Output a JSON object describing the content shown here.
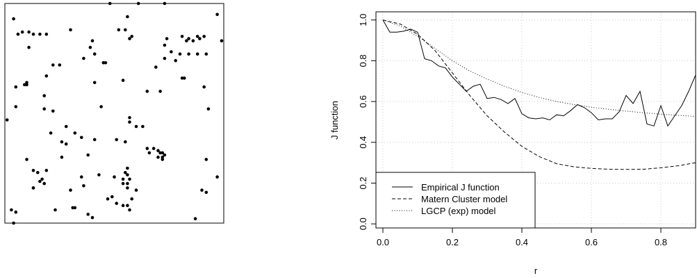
{
  "chart_data": [
    {
      "type": "scatter",
      "title": "",
      "xlabel": "",
      "ylabel": "",
      "xlim": [
        0,
        1
      ],
      "ylim": [
        0,
        1
      ],
      "axes_visible": false,
      "points": [
        [
          0.48,
          1.0
        ],
        [
          0.61,
          1.0
        ],
        [
          0.73,
          1.0
        ],
        [
          0.04,
          0.93
        ],
        [
          0.97,
          0.95
        ],
        [
          0.56,
          0.94
        ],
        [
          0.08,
          0.87
        ],
        [
          0.11,
          0.87
        ],
        [
          0.13,
          0.86
        ],
        [
          0.16,
          0.86
        ],
        [
          0.19,
          0.86
        ],
        [
          0.06,
          0.86
        ],
        [
          0.3,
          0.88
        ],
        [
          0.52,
          0.88
        ],
        [
          0.55,
          0.88
        ],
        [
          0.58,
          0.85
        ],
        [
          0.57,
          0.84
        ],
        [
          0.99,
          0.83
        ],
        [
          0.4,
          0.83
        ],
        [
          0.74,
          0.84
        ],
        [
          0.81,
          0.85
        ],
        [
          0.84,
          0.84
        ],
        [
          0.88,
          0.85
        ],
        [
          0.91,
          0.85
        ],
        [
          0.83,
          0.83
        ],
        [
          0.86,
          0.83
        ],
        [
          0.89,
          0.84
        ],
        [
          0.11,
          0.8
        ],
        [
          0.39,
          0.8
        ],
        [
          0.73,
          0.81
        ],
        [
          0.36,
          0.75
        ],
        [
          0.41,
          0.77
        ],
        [
          0.76,
          0.78
        ],
        [
          0.8,
          0.77
        ],
        [
          0.84,
          0.77
        ],
        [
          0.88,
          0.77
        ],
        [
          0.92,
          0.77
        ],
        [
          0.73,
          0.75
        ],
        [
          0.78,
          0.74
        ],
        [
          0.45,
          0.73
        ],
        [
          0.46,
          0.73
        ],
        [
          0.22,
          0.72
        ],
        [
          0.25,
          0.72
        ],
        [
          0.69,
          0.71
        ],
        [
          0.19,
          0.67
        ],
        [
          0.54,
          0.65
        ],
        [
          0.81,
          0.66
        ],
        [
          0.82,
          0.66
        ],
        [
          0.1,
          0.64
        ],
        [
          0.09,
          0.63
        ],
        [
          0.1,
          0.63
        ],
        [
          0.05,
          0.62
        ],
        [
          0.41,
          0.64
        ],
        [
          0.91,
          0.62
        ],
        [
          0.65,
          0.6
        ],
        [
          0.71,
          0.6
        ],
        [
          0.18,
          0.58
        ],
        [
          0.05,
          0.53
        ],
        [
          0.18,
          0.52
        ],
        [
          0.22,
          0.51
        ],
        [
          0.44,
          0.53
        ],
        [
          0.93,
          0.52
        ],
        [
          0.57,
          0.48
        ],
        [
          0.57,
          0.46
        ],
        [
          0.6,
          0.44
        ],
        [
          0.63,
          0.44
        ],
        [
          0.01,
          0.47
        ],
        [
          0.28,
          0.44
        ],
        [
          0.32,
          0.41
        ],
        [
          0.21,
          0.41
        ],
        [
          0.35,
          0.39
        ],
        [
          0.26,
          0.37
        ],
        [
          0.28,
          0.36
        ],
        [
          0.41,
          0.38
        ],
        [
          0.51,
          0.38
        ],
        [
          0.55,
          0.37
        ],
        [
          0.65,
          0.34
        ],
        [
          0.68,
          0.34
        ],
        [
          0.7,
          0.33
        ],
        [
          0.71,
          0.32
        ],
        [
          0.72,
          0.32
        ],
        [
          0.73,
          0.31
        ],
        [
          0.7,
          0.3
        ],
        [
          0.72,
          0.29
        ],
        [
          0.38,
          0.31
        ],
        [
          0.26,
          0.3
        ],
        [
          0.66,
          0.32
        ],
        [
          0.72,
          0.3
        ],
        [
          0.92,
          0.29
        ],
        [
          0.1,
          0.29
        ],
        [
          0.13,
          0.24
        ],
        [
          0.15,
          0.23
        ],
        [
          0.19,
          0.24
        ],
        [
          0.56,
          0.25
        ],
        [
          0.55,
          0.23
        ],
        [
          0.56,
          0.22
        ],
        [
          0.17,
          0.2
        ],
        [
          0.16,
          0.19
        ],
        [
          0.18,
          0.18
        ],
        [
          0.54,
          0.2
        ],
        [
          0.57,
          0.2
        ],
        [
          0.35,
          0.21
        ],
        [
          0.5,
          0.21
        ],
        [
          0.54,
          0.18
        ],
        [
          0.56,
          0.18
        ],
        [
          0.43,
          0.22
        ],
        [
          0.97,
          0.21
        ],
        [
          0.13,
          0.16
        ],
        [
          0.13,
          0.16
        ],
        [
          0.36,
          0.17
        ],
        [
          0.56,
          0.16
        ],
        [
          0.3,
          0.15
        ],
        [
          0.6,
          0.15
        ],
        [
          0.9,
          0.15
        ],
        [
          0.92,
          0.14
        ],
        [
          0.47,
          0.11
        ],
        [
          0.49,
          0.12
        ],
        [
          0.58,
          0.11
        ],
        [
          0.54,
          0.08
        ],
        [
          0.56,
          0.08
        ],
        [
          0.51,
          0.09
        ],
        [
          0.31,
          0.07
        ],
        [
          0.32,
          0.07
        ],
        [
          0.38,
          0.04
        ],
        [
          0.23,
          0.06
        ],
        [
          0.57,
          0.06
        ],
        [
          0.03,
          0.06
        ],
        [
          0.05,
          0.05
        ],
        [
          0.87,
          0.02
        ],
        [
          0.04,
          0.0
        ],
        [
          0.4,
          0.025
        ]
      ]
    },
    {
      "type": "line",
      "title": "",
      "xlabel": "r",
      "ylabel": "J function",
      "xlim": [
        -0.02,
        0.9
      ],
      "ylim": [
        -0.02,
        1.04
      ],
      "xticks": [
        "0.0",
        "0.2",
        "0.4",
        "0.6",
        "0.8"
      ],
      "yticks": [
        "0.0",
        "0.2",
        "0.4",
        "0.6",
        "0.8",
        "1.0"
      ],
      "grid": true,
      "legend_position": "bottom-left",
      "series": [
        {
          "name": "Empirical J function",
          "line_style": "solid",
          "x": [
            0,
            0.02,
            0.04,
            0.06,
            0.08,
            0.1,
            0.12,
            0.14,
            0.16,
            0.18,
            0.2,
            0.22,
            0.24,
            0.26,
            0.28,
            0.3,
            0.32,
            0.34,
            0.36,
            0.38,
            0.4,
            0.42,
            0.44,
            0.46,
            0.48,
            0.5,
            0.52,
            0.54,
            0.56,
            0.58,
            0.6,
            0.62,
            0.64,
            0.66,
            0.68,
            0.7,
            0.72,
            0.74,
            0.76,
            0.78,
            0.8,
            0.82,
            0.84,
            0.86,
            0.88,
            0.9
          ],
          "y": [
            1.0,
            0.94,
            0.94,
            0.945,
            0.955,
            0.94,
            0.81,
            0.8,
            0.775,
            0.765,
            0.72,
            0.685,
            0.65,
            0.675,
            0.685,
            0.615,
            0.62,
            0.61,
            0.59,
            0.615,
            0.54,
            0.52,
            0.515,
            0.52,
            0.51,
            0.535,
            0.53,
            0.555,
            0.585,
            0.57,
            0.545,
            0.51,
            0.515,
            0.515,
            0.55,
            0.63,
            0.59,
            0.65,
            0.49,
            0.48,
            0.58,
            0.48,
            0.53,
            0.58,
            0.65,
            0.73
          ]
        },
        {
          "name": "Matern Cluster model",
          "line_style": "dashed",
          "x": [
            0,
            0.05,
            0.1,
            0.15,
            0.2,
            0.25,
            0.3,
            0.35,
            0.4,
            0.45,
            0.5,
            0.55,
            0.6,
            0.65,
            0.7,
            0.75,
            0.8,
            0.85,
            0.9
          ],
          "y": [
            1.0,
            0.98,
            0.93,
            0.85,
            0.74,
            0.63,
            0.53,
            0.45,
            0.38,
            0.33,
            0.295,
            0.28,
            0.272,
            0.268,
            0.267,
            0.268,
            0.275,
            0.285,
            0.3
          ]
        },
        {
          "name": "LGCP (exp) model",
          "line_style": "dotted",
          "x": [
            0,
            0.05,
            0.1,
            0.15,
            0.2,
            0.25,
            0.3,
            0.35,
            0.4,
            0.45,
            0.5,
            0.55,
            0.6,
            0.65,
            0.7,
            0.75,
            0.8,
            0.85,
            0.9
          ],
          "y": [
            1.0,
            0.97,
            0.92,
            0.86,
            0.8,
            0.75,
            0.71,
            0.675,
            0.645,
            0.62,
            0.6,
            0.585,
            0.572,
            0.562,
            0.553,
            0.545,
            0.538,
            0.532,
            0.527
          ]
        }
      ]
    }
  ]
}
